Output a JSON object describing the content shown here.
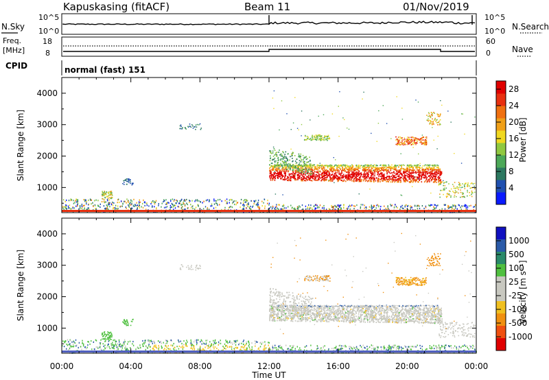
{
  "header": {
    "station": "Kapuskasing (fitACF)",
    "beam": "Beam 11",
    "date": "01/Nov/2019"
  },
  "top_strip": {
    "nsky_label": "N.Sky",
    "nsearch_label": "N.Search",
    "left_tick_top": "10^5",
    "left_tick_bottom": "10^0",
    "right_tick_top": "10^5",
    "right_tick_bottom": "10^0"
  },
  "freq_strip": {
    "freq_label_1": "Freq.",
    "freq_label_2": "[MHz]",
    "left_tick_top": "18",
    "left_tick_bottom": "8",
    "nave_label": "Nave",
    "right_tick_top": "60",
    "right_tick_bottom": "0"
  },
  "cpid": {
    "label": "CPID",
    "mode": "normal (fast) 151"
  },
  "chart_data": [
    {
      "type": "heatmap",
      "name": "power",
      "ylabel": "Slant Range [km]",
      "xlabel": "Time UT",
      "ylim": [
        200,
        4500
      ],
      "yticks": [
        "1000",
        "2000",
        "3000",
        "4000"
      ],
      "xticks": [
        "00:00",
        "04:00",
        "08:00",
        "12:00",
        "16:00",
        "20:00",
        "00:00"
      ],
      "colorbar": {
        "label": "Power [dB]",
        "ticks": [
          "4",
          "8",
          "12",
          "16",
          "20",
          "24",
          "28"
        ],
        "colors": [
          "#0a1aff",
          "#2050b0",
          "#2c7860",
          "#4ca858",
          "#90c840",
          "#f0d820",
          "#f0a018",
          "#f07010",
          "#e83010",
          "#e00000"
        ]
      }
    },
    {
      "type": "heatmap",
      "name": "velocity",
      "ylabel": "Slant Range [km]",
      "xlabel": "Time UT",
      "ylim": [
        200,
        4500
      ],
      "yticks": [
        "1000",
        "2000",
        "3000",
        "4000"
      ],
      "xticks": [
        "00:00",
        "04:00",
        "08:00",
        "12:00",
        "16:00",
        "20:00",
        "00:00"
      ],
      "colorbar": {
        "label": "Velocity [m s⁻¹]",
        "ticks": [
          "1000",
          "500",
          "100",
          "25",
          "-25",
          "-100",
          "-500",
          "-1000"
        ],
        "colors": [
          "#1010c0",
          "#2a5aa8",
          "#2a8a6a",
          "#50c040",
          "#c8c8c0",
          "#c8c8c0",
          "#f0c020",
          "#f09010",
          "#f05010",
          "#e00000"
        ]
      }
    }
  ]
}
